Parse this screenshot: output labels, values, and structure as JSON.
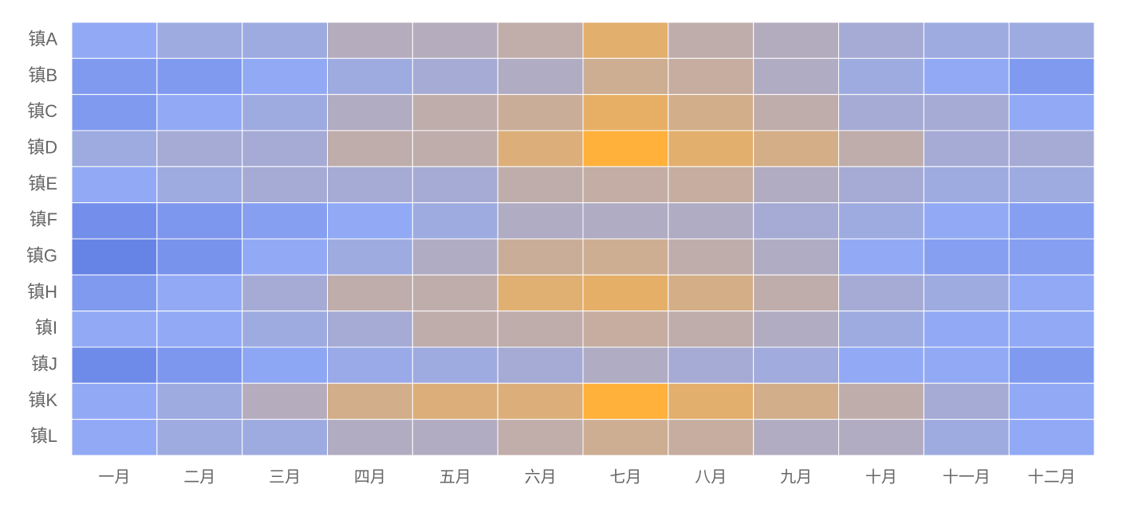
{
  "chart_data": {
    "type": "heatmap",
    "x_categories": [
      "一月",
      "二月",
      "三月",
      "四月",
      "五月",
      "六月",
      "七月",
      "八月",
      "九月",
      "十月",
      "十一月",
      "十二月"
    ],
    "y_categories": [
      "镇A",
      "镇B",
      "镇C",
      "镇D",
      "镇E",
      "镇F",
      "镇G",
      "镇H",
      "镇I",
      "镇J",
      "镇K",
      "镇L"
    ],
    "values": [
      [
        2.5,
        3.3,
        3.3,
        4.8,
        4.8,
        5.6,
        8,
        5.5,
        4.7,
        3.8,
        3.3,
        3.3
      ],
      [
        1.5,
        1.5,
        2.5,
        3.3,
        3.8,
        4.5,
        6.5,
        6,
        4.5,
        3.3,
        2.5,
        1.5
      ],
      [
        1.5,
        2.5,
        3.3,
        4.6,
        5.5,
        6.3,
        8.3,
        6.8,
        5.5,
        3.8,
        3.8,
        2.5
      ],
      [
        3.3,
        3.8,
        3.8,
        5.5,
        5.5,
        7.5,
        10,
        8,
        7,
        5.5,
        3.8,
        3.8
      ],
      [
        2.5,
        3.3,
        3.8,
        3.8,
        3.8,
        5.5,
        5.8,
        6,
        4.6,
        3.8,
        3.3,
        3.3
      ],
      [
        0.8,
        1.3,
        1.8,
        2.5,
        3.3,
        4.5,
        4.5,
        4.5,
        3.8,
        3.3,
        2.5,
        1.8
      ],
      [
        0,
        1,
        2.5,
        3.3,
        4.5,
        6.3,
        6.5,
        5.5,
        4.5,
        2.5,
        1.8,
        1.8
      ],
      [
        1.5,
        2.5,
        3.8,
        5.5,
        5.5,
        7.8,
        8.2,
        7,
        5.5,
        3.8,
        3.3,
        2.5
      ],
      [
        2.5,
        2.5,
        3.3,
        3.8,
        5.5,
        5.5,
        6,
        5.5,
        4.6,
        3.3,
        2.5,
        2.5
      ],
      [
        0.5,
        1.3,
        2.3,
        3,
        3.3,
        3.8,
        4.5,
        3.8,
        3.5,
        2.5,
        2.5,
        1.5
      ],
      [
        2.5,
        3.3,
        4.8,
        6.8,
        7.5,
        7.5,
        10,
        8,
        6.8,
        5.5,
        3.8,
        2.5
      ],
      [
        2.5,
        3.3,
        3.3,
        4.6,
        4.6,
        5.6,
        6.5,
        6,
        4.6,
        4.6,
        3.3,
        2.5
      ]
    ],
    "color_stops": [
      {
        "value": 0,
        "color": "#6683e6"
      },
      {
        "value": 2.5,
        "color": "#92aaf5"
      },
      {
        "value": 5,
        "color": "#b8acb8"
      },
      {
        "value": 10,
        "color": "#ffb13b"
      }
    ]
  }
}
